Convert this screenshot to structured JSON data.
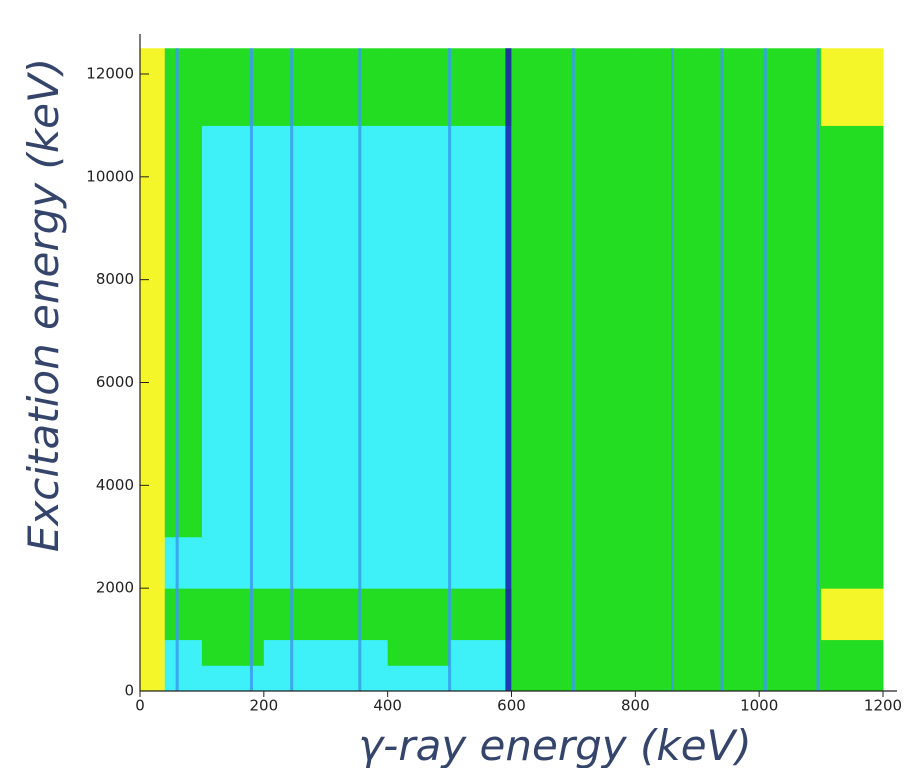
{
  "chart_data": {
    "type": "heatmap",
    "xlabel": "γ-ray energy (keV)",
    "ylabel": "Excitation energy (keV)",
    "xlim": [
      0,
      1200
    ],
    "ylim": [
      0,
      12700
    ],
    "xticks": [
      0,
      200,
      400,
      600,
      800,
      1000,
      1200
    ],
    "yticks": [
      0,
      2000,
      4000,
      6000,
      8000,
      10000,
      12000
    ],
    "x_edges": [
      0,
      40,
      100,
      200,
      300,
      400,
      500,
      600,
      700,
      800,
      900,
      1000,
      1100,
      1200
    ],
    "y_edges": [
      0,
      500,
      1000,
      2000,
      2500,
      3000,
      4500,
      6000,
      8000,
      10000,
      11000,
      12500
    ],
    "z": [
      [
        1,
        3,
        3,
        3,
        3,
        3,
        3,
        2,
        2,
        2,
        2,
        2,
        2
      ],
      [
        1,
        3,
        2,
        3,
        3,
        2,
        3,
        2,
        2,
        2,
        2,
        2,
        2
      ],
      [
        1,
        2,
        2,
        2,
        2,
        2,
        2,
        2,
        2,
        2,
        2,
        2,
        1
      ],
      [
        1,
        3,
        3,
        3,
        3,
        3,
        3,
        2,
        2,
        2,
        2,
        2,
        2
      ],
      [
        1,
        3,
        3,
        3,
        3,
        3,
        3,
        2,
        2,
        2,
        2,
        2,
        2
      ],
      [
        1,
        2,
        3,
        3,
        3,
        3,
        3,
        2,
        2,
        2,
        2,
        2,
        2
      ],
      [
        1,
        2,
        3,
        3,
        3,
        3,
        3,
        2,
        2,
        2,
        2,
        2,
        2
      ],
      [
        1,
        2,
        3,
        3,
        3,
        3,
        3,
        2,
        2,
        2,
        2,
        2,
        2
      ],
      [
        1,
        2,
        3,
        3,
        3,
        3,
        3,
        2,
        2,
        2,
        2,
        2,
        2
      ],
      [
        1,
        2,
        3,
        3,
        3,
        3,
        3,
        2,
        2,
        2,
        2,
        2,
        2
      ],
      [
        1,
        2,
        2,
        2,
        2,
        2,
        2,
        2,
        2,
        2,
        2,
        2,
        1
      ]
    ],
    "colors": [
      "#f4f62a",
      "#22dd22",
      "#3ef0f8"
    ],
    "line_x": [
      60,
      180,
      245,
      355,
      500,
      595,
      700,
      860,
      940,
      1010,
      1095
    ],
    "line_color": "#3a9cf0",
    "strong_line_color": "#1c1ca8"
  }
}
